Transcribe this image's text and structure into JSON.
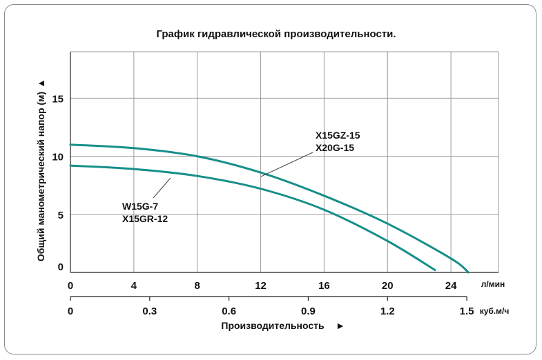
{
  "chart_data": {
    "type": "line",
    "title": "График гидравлической производительности.",
    "ylabel": "Общий манометрический напор (м)",
    "xlabel": "Производительность",
    "y_arrow": "▲",
    "x_arrow": "►",
    "ylim": [
      0,
      19
    ],
    "y_ticks": [
      "0",
      "5",
      "10",
      "15"
    ],
    "xlim": [
      0,
      27
    ],
    "x_ticks_lmin": [
      "0",
      "4",
      "8",
      "12",
      "16",
      "20",
      "24"
    ],
    "x_unit_lmin": "л/мин",
    "x_ticks_m3h": [
      "0",
      "0.3",
      "0.6",
      "0.9",
      "1.2",
      "1.5"
    ],
    "x_unit_m3h": "куб.м/ч",
    "grid": true,
    "series": [
      {
        "models": [
          "X15GZ-15",
          "X20G-15"
        ],
        "color": "#168f8a",
        "x": [
          0,
          4,
          8,
          12,
          16,
          20,
          24,
          25.1
        ],
        "y": [
          11.0,
          10.7,
          10.0,
          8.6,
          6.6,
          4.2,
          1.2,
          0
        ]
      },
      {
        "models": [
          "W15G-7",
          "X15GR-12"
        ],
        "color": "#168f8a",
        "x": [
          0,
          4,
          8,
          12,
          16,
          20,
          23
        ],
        "y": [
          9.2,
          8.9,
          8.3,
          7.2,
          5.4,
          2.7,
          0.2
        ]
      }
    ]
  }
}
